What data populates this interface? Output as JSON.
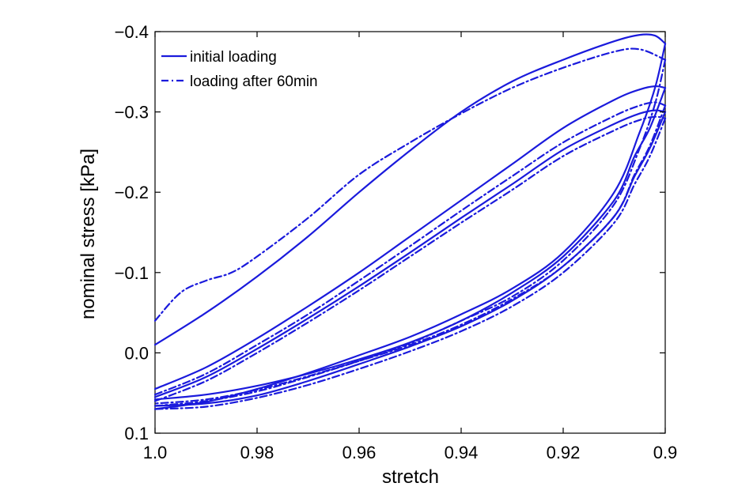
{
  "chart_data": {
    "type": "line",
    "title": "",
    "xlabel": "stretch",
    "ylabel": "nominal stress [kPa]",
    "xlim": [
      1.0,
      0.9
    ],
    "ylim": [
      0.1,
      -0.4
    ],
    "x_reversed": true,
    "y_reversed": true,
    "xticks": [
      1.0,
      0.98,
      0.96,
      0.94,
      0.92,
      0.9
    ],
    "xtick_labels": [
      "1.0",
      "0.98",
      "0.96",
      "0.94",
      "0.92",
      "0.9"
    ],
    "yticks": [
      -0.4,
      -0.3,
      -0.2,
      -0.1,
      0.0,
      0.1
    ],
    "ytick_labels": [
      "−0.4",
      "−0.3",
      "−0.2",
      "−0.1",
      "0.0",
      "0.1"
    ],
    "grid": false,
    "legend_position": "top-left",
    "color": "#1a1adc",
    "series": [
      {
        "name": "initial loading",
        "style": "solid",
        "loops": [
          {
            "loading": [
              [
                1.0,
                -0.01
              ],
              [
                0.99,
                -0.05
              ],
              [
                0.98,
                -0.095
              ],
              [
                0.97,
                -0.145
              ],
              [
                0.96,
                -0.2
              ],
              [
                0.95,
                -0.252
              ],
              [
                0.94,
                -0.3
              ],
              [
                0.93,
                -0.338
              ],
              [
                0.92,
                -0.365
              ],
              [
                0.91,
                -0.388
              ],
              [
                0.905,
                -0.396
              ],
              [
                0.902,
                -0.395
              ],
              [
                0.9,
                -0.385
              ]
            ],
            "unloading": [
              [
                0.9,
                -0.385
              ],
              [
                0.902,
                -0.33
              ],
              [
                0.905,
                -0.275
              ],
              [
                0.91,
                -0.2
              ],
              [
                0.92,
                -0.125
              ],
              [
                0.93,
                -0.08
              ],
              [
                0.94,
                -0.048
              ],
              [
                0.95,
                -0.02
              ],
              [
                0.96,
                0.003
              ],
              [
                0.97,
                0.025
              ],
              [
                0.98,
                0.045
              ],
              [
                0.99,
                0.061
              ],
              [
                1.0,
                0.07
              ]
            ]
          },
          {
            "loading": [
              [
                1.0,
                0.045
              ],
              [
                0.99,
                0.018
              ],
              [
                0.98,
                -0.018
              ],
              [
                0.97,
                -0.058
              ],
              [
                0.96,
                -0.1
              ],
              [
                0.95,
                -0.145
              ],
              [
                0.94,
                -0.19
              ],
              [
                0.93,
                -0.235
              ],
              [
                0.92,
                -0.28
              ],
              [
                0.91,
                -0.315
              ],
              [
                0.905,
                -0.328
              ],
              [
                0.902,
                -0.332
              ],
              [
                0.9,
                -0.33
              ]
            ],
            "unloading": [
              [
                0.9,
                -0.33
              ],
              [
                0.903,
                -0.28
              ],
              [
                0.906,
                -0.245
              ],
              [
                0.91,
                -0.19
              ],
              [
                0.92,
                -0.12
              ],
              [
                0.93,
                -0.075
              ],
              [
                0.94,
                -0.04
              ],
              [
                0.95,
                -0.013
              ],
              [
                0.96,
                0.008
              ],
              [
                0.97,
                0.026
              ],
              [
                0.98,
                0.041
              ],
              [
                0.99,
                0.052
              ],
              [
                1.0,
                0.058
              ]
            ]
          },
          {
            "loading": [
              [
                1.0,
                0.055
              ],
              [
                0.99,
                0.03
              ],
              [
                0.98,
                -0.005
              ],
              [
                0.97,
                -0.043
              ],
              [
                0.96,
                -0.083
              ],
              [
                0.95,
                -0.125
              ],
              [
                0.94,
                -0.168
              ],
              [
                0.93,
                -0.21
              ],
              [
                0.92,
                -0.253
              ],
              [
                0.91,
                -0.285
              ],
              [
                0.905,
                -0.298
              ],
              [
                0.902,
                -0.302
              ],
              [
                0.9,
                -0.3
              ]
            ],
            "unloading": [
              [
                0.9,
                -0.3
              ],
              [
                0.903,
                -0.255
              ],
              [
                0.906,
                -0.22
              ],
              [
                0.91,
                -0.17
              ],
              [
                0.92,
                -0.108
              ],
              [
                0.93,
                -0.065
              ],
              [
                0.94,
                -0.033
              ],
              [
                0.95,
                -0.008
              ],
              [
                0.96,
                0.014
              ],
              [
                0.97,
                0.035
              ],
              [
                0.98,
                0.053
              ],
              [
                0.99,
                0.063
              ],
              [
                1.0,
                0.066
              ]
            ]
          }
        ]
      },
      {
        "name": "loading after 60min",
        "style": "dashdot",
        "loops": [
          {
            "loading": [
              [
                1.0,
                -0.04
              ],
              [
                0.995,
                -0.075
              ],
              [
                0.99,
                -0.09
              ],
              [
                0.985,
                -0.1
              ],
              [
                0.98,
                -0.12
              ],
              [
                0.97,
                -0.168
              ],
              [
                0.96,
                -0.222
              ],
              [
                0.95,
                -0.262
              ],
              [
                0.94,
                -0.298
              ],
              [
                0.93,
                -0.33
              ],
              [
                0.92,
                -0.355
              ],
              [
                0.91,
                -0.375
              ],
              [
                0.905,
                -0.378
              ],
              [
                0.9,
                -0.365
              ]
            ],
            "unloading": [
              [
                0.9,
                -0.365
              ],
              [
                0.902,
                -0.31
              ],
              [
                0.905,
                -0.255
              ],
              [
                0.91,
                -0.185
              ],
              [
                0.92,
                -0.115
              ],
              [
                0.93,
                -0.07
              ],
              [
                0.94,
                -0.04
              ],
              [
                0.95,
                -0.012
              ],
              [
                0.96,
                0.01
              ],
              [
                0.97,
                0.03
              ],
              [
                0.98,
                0.048
              ],
              [
                0.99,
                0.06
              ],
              [
                1.0,
                0.066
              ]
            ]
          },
          {
            "loading": [
              [
                1.0,
                0.052
              ],
              [
                0.99,
                0.026
              ],
              [
                0.98,
                -0.01
              ],
              [
                0.97,
                -0.048
              ],
              [
                0.96,
                -0.09
              ],
              [
                0.95,
                -0.133
              ],
              [
                0.94,
                -0.177
              ],
              [
                0.93,
                -0.22
              ],
              [
                0.92,
                -0.262
              ],
              [
                0.91,
                -0.295
              ],
              [
                0.905,
                -0.308
              ],
              [
                0.902,
                -0.312
              ],
              [
                0.9,
                -0.308
              ]
            ],
            "unloading": [
              [
                0.9,
                -0.308
              ],
              [
                0.903,
                -0.258
              ],
              [
                0.906,
                -0.222
              ],
              [
                0.91,
                -0.17
              ],
              [
                0.92,
                -0.108
              ],
              [
                0.93,
                -0.067
              ],
              [
                0.94,
                -0.035
              ],
              [
                0.95,
                -0.01
              ],
              [
                0.96,
                0.01
              ],
              [
                0.97,
                0.029
              ],
              [
                0.98,
                0.046
              ],
              [
                0.99,
                0.058
              ],
              [
                1.0,
                0.063
              ]
            ]
          },
          {
            "loading": [
              [
                1.0,
                0.06
              ],
              [
                0.99,
                0.035
              ],
              [
                0.98,
                0.0
              ],
              [
                0.97,
                -0.038
              ],
              [
                0.96,
                -0.078
              ],
              [
                0.95,
                -0.12
              ],
              [
                0.94,
                -0.162
              ],
              [
                0.93,
                -0.203
              ],
              [
                0.92,
                -0.245
              ],
              [
                0.91,
                -0.277
              ],
              [
                0.905,
                -0.29
              ],
              [
                0.902,
                -0.294
              ],
              [
                0.9,
                -0.292
              ]
            ],
            "unloading": [
              [
                0.9,
                -0.292
              ],
              [
                0.903,
                -0.245
              ],
              [
                0.906,
                -0.21
              ],
              [
                0.91,
                -0.162
              ],
              [
                0.92,
                -0.1
              ],
              [
                0.93,
                -0.058
              ],
              [
                0.94,
                -0.027
              ],
              [
                0.95,
                -0.002
              ],
              [
                0.96,
                0.02
              ],
              [
                0.97,
                0.04
              ],
              [
                0.98,
                0.056
              ],
              [
                0.99,
                0.067
              ],
              [
                1.0,
                0.07
              ]
            ]
          }
        ]
      }
    ]
  }
}
